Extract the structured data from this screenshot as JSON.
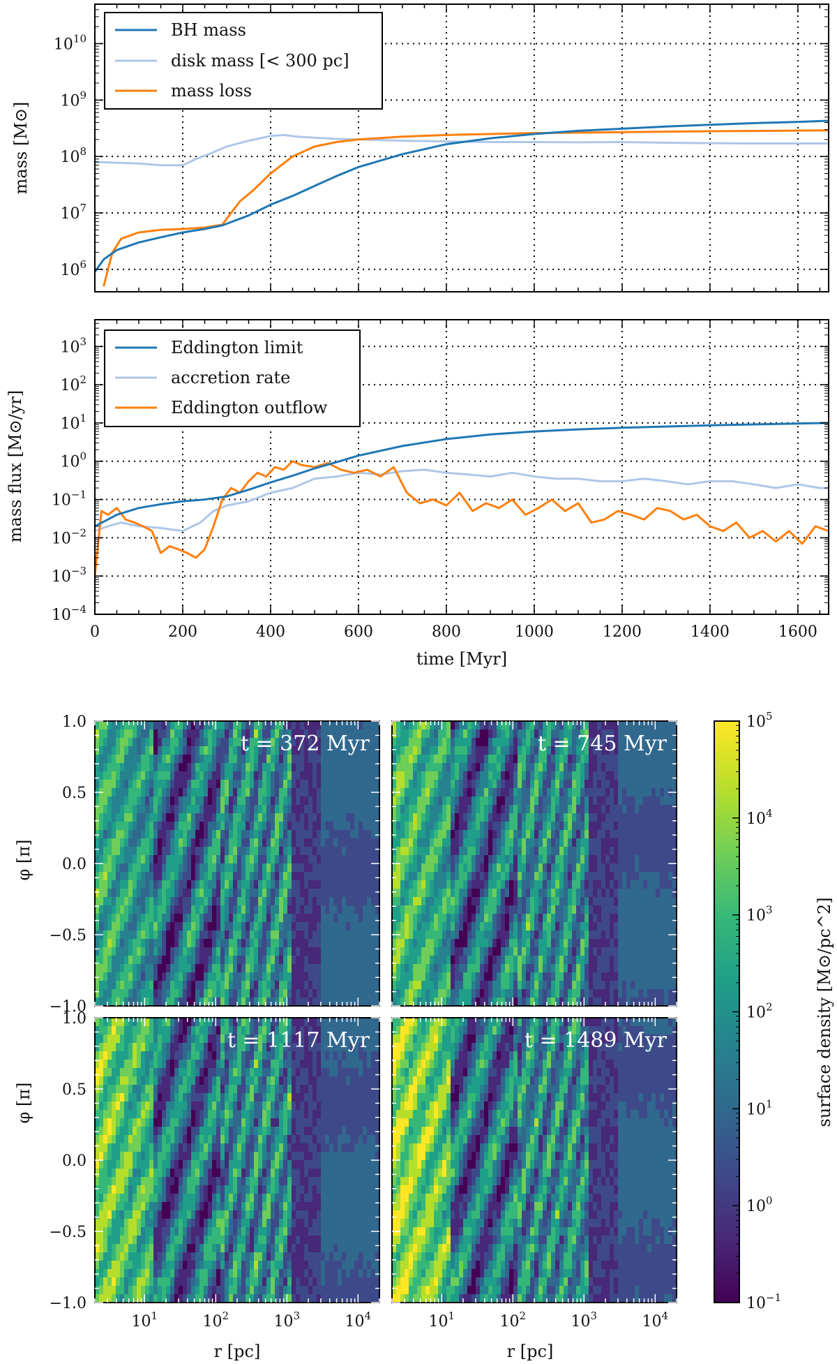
{
  "colors": {
    "bh": "#1f77b4",
    "light": "#aec7e8",
    "orange": "#ff7f0e",
    "cmap": [
      "#440154",
      "#482878",
      "#3e4989",
      "#31688e",
      "#26828e",
      "#1f9e89",
      "#35b779",
      "#6ece58",
      "#b5de2b",
      "#fde725"
    ]
  },
  "chart_data": [
    {
      "type": "line",
      "panel": "top",
      "ylabel": "mass [M⊙]",
      "yscale": "log",
      "ylim": [
        400000,
        50000000000
      ],
      "xlim": [
        0,
        1670
      ],
      "yticks": [
        "10^6",
        "10^7",
        "10^8",
        "10^9",
        "10^10"
      ],
      "legend": {
        "position": "top-left",
        "entries": [
          "BH mass",
          "disk mass [< 300 pc]",
          "mass loss"
        ]
      },
      "series": [
        {
          "name": "BH mass",
          "color": "bh",
          "x": [
            0,
            20,
            50,
            100,
            150,
            200,
            250,
            290,
            350,
            400,
            450,
            500,
            550,
            600,
            700,
            800,
            900,
            1000,
            1100,
            1200,
            1300,
            1400,
            1500,
            1600,
            1670
          ],
          "y": [
            900000,
            1500000,
            2200000,
            3000000,
            3700000,
            4500000,
            5200000,
            6000000,
            9000000,
            14000000,
            20000000,
            30000000,
            45000000,
            65000000,
            110000000,
            165000000,
            210000000,
            250000000,
            285000000,
            310000000,
            340000000,
            365000000,
            390000000,
            410000000,
            430000000
          ]
        },
        {
          "name": "disk mass [< 300 pc]",
          "color": "light",
          "x": [
            0,
            100,
            150,
            200,
            230,
            260,
            300,
            350,
            400,
            430,
            460,
            500,
            550,
            600,
            700,
            800,
            900,
            1000,
            1100,
            1200,
            1300,
            1400,
            1500,
            1600,
            1670
          ],
          "y": [
            80000000,
            75000000,
            70000000,
            70000000,
            90000000,
            110000000,
            150000000,
            190000000,
            230000000,
            240000000,
            225000000,
            215000000,
            205000000,
            200000000,
            190000000,
            185000000,
            180000000,
            180000000,
            178000000,
            180000000,
            175000000,
            172000000,
            170000000,
            170000000,
            170000000
          ]
        },
        {
          "name": "mass loss",
          "color": "orange",
          "x": [
            20,
            40,
            60,
            100,
            150,
            200,
            250,
            290,
            310,
            330,
            360,
            400,
            450,
            500,
            550,
            600,
            700,
            800,
            900,
            1000,
            1200,
            1400,
            1670
          ],
          "y": [
            500000,
            2000000,
            3500000,
            4500000,
            5000000,
            5200000,
            5500000,
            6200000,
            10000000,
            16000000,
            25000000,
            50000000,
            100000000,
            150000000,
            180000000,
            200000000,
            225000000,
            240000000,
            250000000,
            260000000,
            270000000,
            280000000,
            290000000
          ]
        }
      ]
    },
    {
      "type": "line",
      "panel": "middle",
      "ylabel": "mass flux [M⊙/yr]",
      "xlabel": "time [Myr]",
      "yscale": "log",
      "ylim": [
        0.0001,
        5000
      ],
      "xlim": [
        0,
        1670
      ],
      "xticks": [
        "0",
        "200",
        "400",
        "600",
        "800",
        "1000",
        "1200",
        "1400",
        "1600"
      ],
      "yticks": [
        "10^-4",
        "10^-3",
        "10^-2",
        "10^-1",
        "10^0",
        "10^1",
        "10^2",
        "10^3"
      ],
      "legend": {
        "position": "top-left",
        "entries": [
          "Eddington limit",
          "accretion rate",
          "Eddington outflow"
        ]
      },
      "series": [
        {
          "name": "Eddington limit",
          "color": "bh",
          "x": [
            0,
            50,
            100,
            150,
            200,
            250,
            300,
            350,
            400,
            450,
            500,
            550,
            600,
            700,
            800,
            900,
            1000,
            1100,
            1200,
            1400,
            1670
          ],
          "y": [
            0.02,
            0.04,
            0.06,
            0.075,
            0.09,
            0.1,
            0.12,
            0.18,
            0.28,
            0.42,
            0.65,
            0.95,
            1.4,
            2.5,
            3.8,
            5.0,
            6.0,
            6.8,
            7.5,
            8.7,
            10
          ]
        },
        {
          "name": "accretion rate",
          "color": "light",
          "x": [
            0,
            30,
            60,
            100,
            150,
            200,
            240,
            270,
            300,
            350,
            400,
            450,
            500,
            550,
            600,
            650,
            700,
            750,
            800,
            850,
            900,
            950,
            1000,
            1050,
            1100,
            1150,
            1200,
            1250,
            1300,
            1350,
            1400,
            1450,
            1500,
            1550,
            1600,
            1650,
            1670
          ],
          "y": [
            0.015,
            0.02,
            0.025,
            0.02,
            0.018,
            0.015,
            0.025,
            0.05,
            0.07,
            0.09,
            0.15,
            0.2,
            0.35,
            0.4,
            0.5,
            0.45,
            0.55,
            0.6,
            0.5,
            0.45,
            0.4,
            0.5,
            0.4,
            0.35,
            0.35,
            0.3,
            0.3,
            0.35,
            0.3,
            0.25,
            0.3,
            0.3,
            0.25,
            0.2,
            0.25,
            0.2,
            0.2
          ]
        },
        {
          "name": "Eddington outflow",
          "color": "orange",
          "x": [
            0,
            15,
            30,
            50,
            70,
            90,
            110,
            130,
            150,
            170,
            190,
            210,
            230,
            250,
            270,
            290,
            310,
            330,
            350,
            370,
            390,
            410,
            430,
            450,
            470,
            500,
            530,
            560,
            590,
            620,
            650,
            680,
            710,
            740,
            770,
            800,
            830,
            860,
            890,
            920,
            950,
            980,
            1010,
            1040,
            1070,
            1100,
            1130,
            1160,
            1190,
            1220,
            1250,
            1280,
            1310,
            1340,
            1370,
            1400,
            1430,
            1460,
            1490,
            1520,
            1550,
            1580,
            1610,
            1640,
            1670
          ],
          "y": [
            0.001,
            0.05,
            0.04,
            0.06,
            0.03,
            0.025,
            0.02,
            0.015,
            0.004,
            0.006,
            0.005,
            0.004,
            0.003,
            0.005,
            0.02,
            0.1,
            0.2,
            0.15,
            0.3,
            0.5,
            0.4,
            0.7,
            0.6,
            1.0,
            0.8,
            0.7,
            0.9,
            0.6,
            0.5,
            0.6,
            0.4,
            0.7,
            0.15,
            0.08,
            0.1,
            0.07,
            0.15,
            0.05,
            0.08,
            0.06,
            0.1,
            0.04,
            0.06,
            0.1,
            0.05,
            0.08,
            0.025,
            0.03,
            0.05,
            0.04,
            0.03,
            0.06,
            0.05,
            0.03,
            0.04,
            0.02,
            0.015,
            0.025,
            0.01,
            0.015,
            0.008,
            0.015,
            0.007,
            0.02,
            0.015
          ]
        }
      ]
    },
    {
      "type": "heatmap",
      "panels": [
        {
          "time_label": "t = 372 Myr",
          "t": 372
        },
        {
          "time_label": "t = 745 Myr",
          "t": 745
        },
        {
          "time_label": "t = 1117 Myr",
          "t": 1117
        },
        {
          "time_label": "t = 1489 Myr",
          "t": 1489
        }
      ],
      "xlabel": "r [pc]",
      "ylabel": "φ [π]",
      "xscale": "log",
      "xlim": [
        2,
        20000
      ],
      "ylim": [
        -1.0,
        1.0
      ],
      "xticks": [
        "10^1",
        "10^2",
        "10^3",
        "10^4"
      ],
      "yticks": [
        "1.0",
        "0.5",
        "0.0",
        "−0.5",
        "−1.0"
      ],
      "colorbar": {
        "label": "surface density [M⊙/pc^2]",
        "scale": "log",
        "range": [
          0.1,
          100000
        ],
        "ticks": [
          "10^5",
          "10^4",
          "10^3",
          "10^2",
          "10^1",
          "10^0",
          "10^-1"
        ]
      }
    }
  ]
}
